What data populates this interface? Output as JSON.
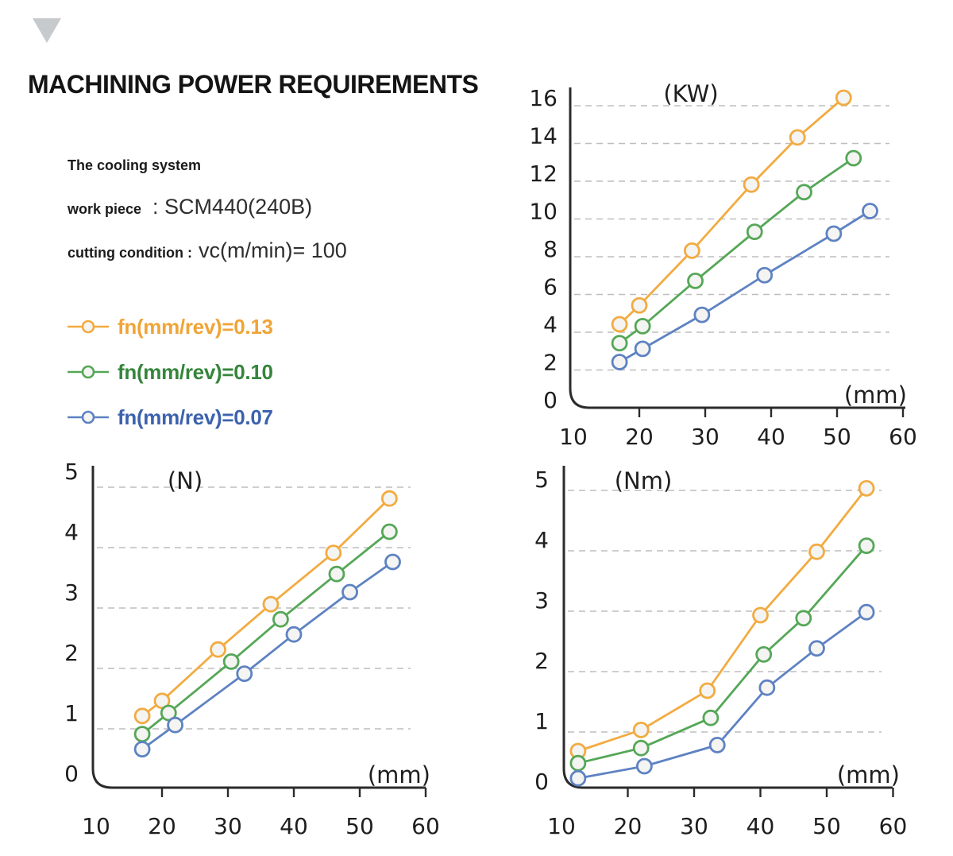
{
  "header": {
    "title": "MACHINING POWER REQUIREMENTS"
  },
  "info": {
    "cooling_system": "The cooling system",
    "work_piece_label": "work piece",
    "work_piece_value": ": SCM440(240B)",
    "cutting_label": "cutting condition :",
    "cutting_value": "vc(m/min)= 100"
  },
  "legend": {
    "items": [
      {
        "label": "fn(mm/rev)=0.13",
        "color": "#F0A437"
      },
      {
        "label": "fn(mm/rev)=0.10",
        "color": "#35853B"
      },
      {
        "label": "fn(mm/rev)=0.07",
        "color": "#3C62AE"
      }
    ]
  },
  "colors": {
    "series_orange": "#F2AB41",
    "series_green": "#55A757",
    "series_blue": "#5E82C2",
    "marker_fill": "#F4F4F2",
    "grid": "#BEBEBE",
    "axis": "#2B2B2B",
    "tick_text": "#1E1E1E",
    "triangle": "#C7CACD"
  },
  "chart_data": [
    {
      "type": "line",
      "title": "(KW)",
      "xlabel": "(mm)",
      "ylabel": "",
      "xlim": [
        10,
        60
      ],
      "ylim": [
        0,
        16
      ],
      "xticks": [
        10,
        20,
        30,
        40,
        50,
        60
      ],
      "yticks": [
        0,
        2,
        4,
        6,
        8,
        10,
        12,
        14,
        16
      ],
      "grid": "dashed-horizontal",
      "series": [
        {
          "name": "fn(mm/rev)=0.13",
          "color": "#F2AB41",
          "x": [
            17,
            20,
            28,
            37,
            44,
            51
          ],
          "y": [
            4.0,
            5.0,
            7.9,
            11.4,
            13.9,
            16.0
          ]
        },
        {
          "name": "fn(mm/rev)=0.10",
          "color": "#55A757",
          "x": [
            17,
            20.5,
            28.5,
            37.5,
            45,
            52.5
          ],
          "y": [
            3.0,
            3.9,
            6.3,
            8.9,
            11.0,
            12.8
          ]
        },
        {
          "name": "fn(mm/rev)=0.07",
          "color": "#5E82C2",
          "x": [
            17,
            20.5,
            29.5,
            39,
            49.5,
            55
          ],
          "y": [
            2.0,
            2.7,
            4.5,
            6.6,
            8.8,
            10.0
          ]
        }
      ]
    },
    {
      "type": "line",
      "title": "(N)",
      "xlabel": "(mm)",
      "ylabel": "",
      "xlim": [
        10,
        60
      ],
      "ylim": [
        0,
        5
      ],
      "xticks": [
        10,
        20,
        30,
        40,
        50,
        60
      ],
      "yticks": [
        0,
        1,
        2,
        3,
        4,
        5
      ],
      "grid": "dashed-horizontal",
      "series": [
        {
          "name": "fn(mm/rev)=0.13",
          "color": "#F2AB41",
          "x": [
            17,
            20,
            28.5,
            36.5,
            46,
            54.5
          ],
          "y": [
            0.95,
            1.2,
            2.05,
            2.8,
            3.65,
            4.55
          ]
        },
        {
          "name": "fn(mm/rev)=0.10",
          "color": "#55A757",
          "x": [
            17,
            21,
            30.5,
            38,
            46.5,
            54.5
          ],
          "y": [
            0.65,
            1.0,
            1.85,
            2.55,
            3.3,
            4.0
          ]
        },
        {
          "name": "fn(mm/rev)=0.07",
          "color": "#5E82C2",
          "x": [
            17,
            22,
            32.5,
            40,
            48.5,
            55
          ],
          "y": [
            0.4,
            0.8,
            1.65,
            2.3,
            3.0,
            3.5
          ]
        }
      ]
    },
    {
      "type": "line",
      "title": "(Nm)",
      "xlabel": "(mm)",
      "ylabel": "",
      "xlim": [
        10,
        60
      ],
      "ylim": [
        0,
        5
      ],
      "xticks": [
        10,
        20,
        30,
        40,
        50,
        60
      ],
      "yticks": [
        0,
        1,
        2,
        3,
        4,
        5
      ],
      "grid": "dashed-horizontal",
      "series": [
        {
          "name": "fn(mm/rev)=0.13",
          "color": "#F2AB41",
          "x": [
            12.5,
            22,
            32,
            40,
            48.5,
            56
          ],
          "y": [
            0.5,
            0.85,
            1.5,
            2.75,
            3.8,
            4.85
          ]
        },
        {
          "name": "fn(mm/rev)=0.10",
          "color": "#55A757",
          "x": [
            12.5,
            22,
            32.5,
            40.5,
            46.5,
            56
          ],
          "y": [
            0.3,
            0.55,
            1.05,
            2.1,
            2.7,
            3.9
          ]
        },
        {
          "name": "fn(mm/rev)=0.07",
          "color": "#5E82C2",
          "x": [
            12.5,
            22.5,
            33.5,
            41,
            48.5,
            56
          ],
          "y": [
            0.05,
            0.25,
            0.6,
            1.55,
            2.2,
            2.8
          ]
        }
      ]
    }
  ]
}
